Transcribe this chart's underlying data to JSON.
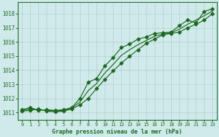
{
  "title": "Graphe pression niveau de la mer (hPa)",
  "background_color": "#d0eaec",
  "grid_color": "#b0cccc",
  "line_color": "#1a6b1a",
  "xlim": [
    -0.5,
    23.5
  ],
  "ylim": [
    1010.5,
    1018.8
  ],
  "yticks": [
    1011,
    1012,
    1013,
    1014,
    1015,
    1016,
    1017,
    1018
  ],
  "xticks": [
    0,
    1,
    2,
    3,
    4,
    5,
    6,
    7,
    8,
    9,
    10,
    11,
    12,
    13,
    14,
    15,
    16,
    17,
    18,
    19,
    20,
    21,
    22,
    23
  ],
  "series": [
    {
      "x": [
        0,
        1,
        2,
        3,
        4,
        5,
        6,
        7,
        8,
        9,
        10,
        11,
        12,
        13,
        14,
        15,
        16,
        17,
        18,
        19,
        20,
        21,
        22,
        23
      ],
      "y": [
        1011.2,
        1011.35,
        1011.15,
        1011.2,
        1011.15,
        1011.2,
        1011.35,
        1012.0,
        1013.15,
        1013.4,
        1014.3,
        1014.9,
        1015.6,
        1015.85,
        1016.2,
        1016.35,
        1016.6,
        1016.65,
        1016.7,
        1017.15,
        1017.55,
        1017.35,
        1018.15,
        1018.35
      ],
      "marker": "D",
      "markersize": 2.5,
      "linewidth": 0.9
    },
    {
      "x": [
        0,
        1,
        2,
        3,
        4,
        5,
        6,
        7,
        8,
        9,
        10,
        11,
        12,
        13,
        14,
        15,
        16,
        17,
        18,
        19,
        20,
        21,
        22,
        23
      ],
      "y": [
        1011.1,
        1011.15,
        1011.25,
        1011.1,
        1011.05,
        1011.1,
        1011.25,
        1011.55,
        1012.0,
        1012.7,
        1013.35,
        1013.95,
        1014.5,
        1015.0,
        1015.45,
        1015.9,
        1016.2,
        1016.5,
        1016.6,
        1016.7,
        1017.0,
        1017.25,
        1017.55,
        1018.0
      ],
      "marker": "D",
      "markersize": 2.5,
      "linewidth": 0.9
    },
    {
      "x": [
        0,
        1,
        2,
        3,
        4,
        5,
        6,
        7,
        8,
        9,
        10,
        11,
        12,
        13,
        14,
        15,
        16,
        17,
        18,
        19,
        20,
        21,
        22,
        23
      ],
      "y": [
        1011.15,
        1011.25,
        1011.2,
        1011.15,
        1011.1,
        1011.15,
        1011.3,
        1011.75,
        1012.55,
        1013.05,
        1013.8,
        1014.4,
        1015.05,
        1015.45,
        1015.8,
        1016.1,
        1016.4,
        1016.55,
        1016.65,
        1016.9,
        1017.25,
        1017.55,
        1017.85,
        1018.2
      ],
      "marker": null,
      "markersize": 0,
      "linewidth": 0.9
    }
  ]
}
